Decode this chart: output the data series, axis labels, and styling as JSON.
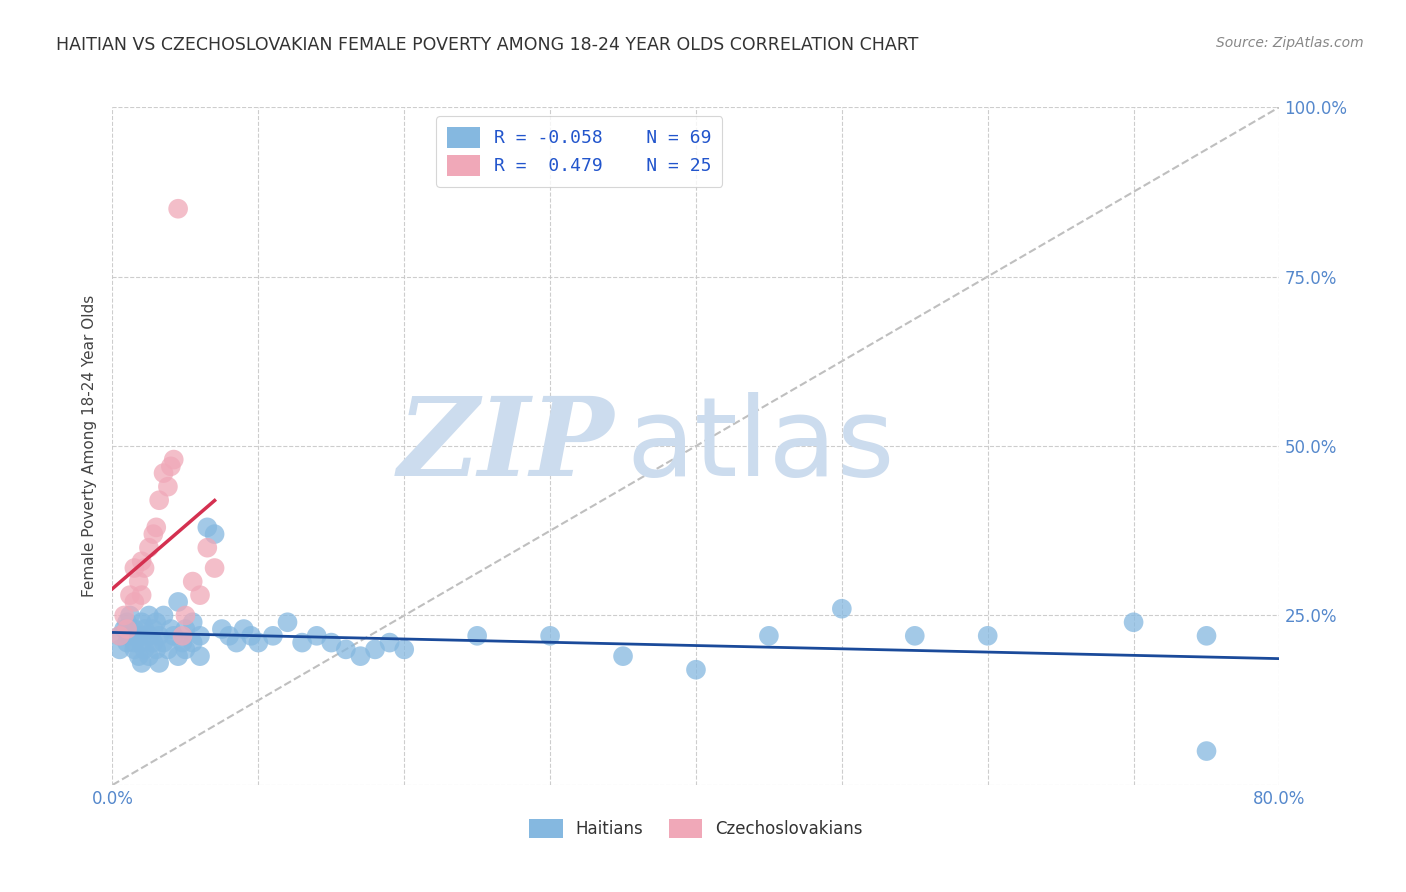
{
  "title": "HAITIAN VS CZECHOSLOVAKIAN FEMALE POVERTY AMONG 18-24 YEAR OLDS CORRELATION CHART",
  "source": "Source: ZipAtlas.com",
  "ylabel": "Female Poverty Among 18-24 Year Olds",
  "xlim": [
    0.0,
    0.8
  ],
  "ylim": [
    0.0,
    1.0
  ],
  "xticks": [
    0.0,
    0.1,
    0.2,
    0.3,
    0.4,
    0.5,
    0.6,
    0.7,
    0.8
  ],
  "xticklabels": [
    "0.0%",
    "",
    "",
    "",
    "",
    "",
    "",
    "",
    "80.0%"
  ],
  "yticks": [
    0.0,
    0.25,
    0.5,
    0.75,
    1.0
  ],
  "right_yticklabels": [
    "",
    "25.0%",
    "50.0%",
    "75.0%",
    "100.0%"
  ],
  "background_color": "#ffffff",
  "grid_color": "#c8c8c8",
  "watermark_zip": "ZIP",
  "watermark_atlas": "atlas",
  "watermark_color": "#ccdcee",
  "legend_r1": "R = -0.058",
  "legend_n1": "N = 69",
  "legend_r2": "R =  0.479",
  "legend_n2": "N = 25",
  "blue_color": "#85b8e0",
  "pink_color": "#f0a8b8",
  "blue_line_color": "#1a4a9a",
  "pink_line_color": "#d43050",
  "ref_line_color": "#b8b8b8",
  "haitian_x": [
    0.005,
    0.005,
    0.008,
    0.01,
    0.01,
    0.012,
    0.012,
    0.015,
    0.015,
    0.015,
    0.018,
    0.018,
    0.02,
    0.02,
    0.02,
    0.022,
    0.022,
    0.025,
    0.025,
    0.025,
    0.028,
    0.028,
    0.03,
    0.03,
    0.032,
    0.032,
    0.035,
    0.035,
    0.038,
    0.04,
    0.042,
    0.045,
    0.045,
    0.048,
    0.05,
    0.05,
    0.055,
    0.055,
    0.06,
    0.06,
    0.065,
    0.07,
    0.075,
    0.08,
    0.085,
    0.09,
    0.095,
    0.1,
    0.11,
    0.12,
    0.13,
    0.14,
    0.15,
    0.16,
    0.17,
    0.18,
    0.19,
    0.2,
    0.25,
    0.3,
    0.35,
    0.4,
    0.45,
    0.5,
    0.55,
    0.6,
    0.7,
    0.75,
    0.75
  ],
  "haitian_y": [
    0.22,
    0.2,
    0.23,
    0.21,
    0.24,
    0.22,
    0.25,
    0.21,
    0.23,
    0.2,
    0.22,
    0.19,
    0.24,
    0.21,
    0.18,
    0.23,
    0.2,
    0.25,
    0.22,
    0.19,
    0.21,
    0.23,
    0.24,
    0.2,
    0.22,
    0.18,
    0.25,
    0.21,
    0.2,
    0.23,
    0.22,
    0.27,
    0.19,
    0.21,
    0.23,
    0.2,
    0.24,
    0.21,
    0.22,
    0.19,
    0.38,
    0.37,
    0.23,
    0.22,
    0.21,
    0.23,
    0.22,
    0.21,
    0.22,
    0.24,
    0.21,
    0.22,
    0.21,
    0.2,
    0.19,
    0.2,
    0.21,
    0.2,
    0.22,
    0.22,
    0.19,
    0.17,
    0.22,
    0.26,
    0.22,
    0.22,
    0.24,
    0.22,
    0.05
  ],
  "czech_x": [
    0.005,
    0.008,
    0.01,
    0.012,
    0.015,
    0.015,
    0.018,
    0.02,
    0.02,
    0.022,
    0.025,
    0.028,
    0.03,
    0.032,
    0.035,
    0.038,
    0.04,
    0.042,
    0.045,
    0.048,
    0.05,
    0.055,
    0.06,
    0.065,
    0.07
  ],
  "czech_y": [
    0.22,
    0.25,
    0.23,
    0.28,
    0.27,
    0.32,
    0.3,
    0.28,
    0.33,
    0.32,
    0.35,
    0.37,
    0.38,
    0.42,
    0.46,
    0.44,
    0.47,
    0.48,
    0.85,
    0.22,
    0.25,
    0.3,
    0.28,
    0.35,
    0.32
  ]
}
